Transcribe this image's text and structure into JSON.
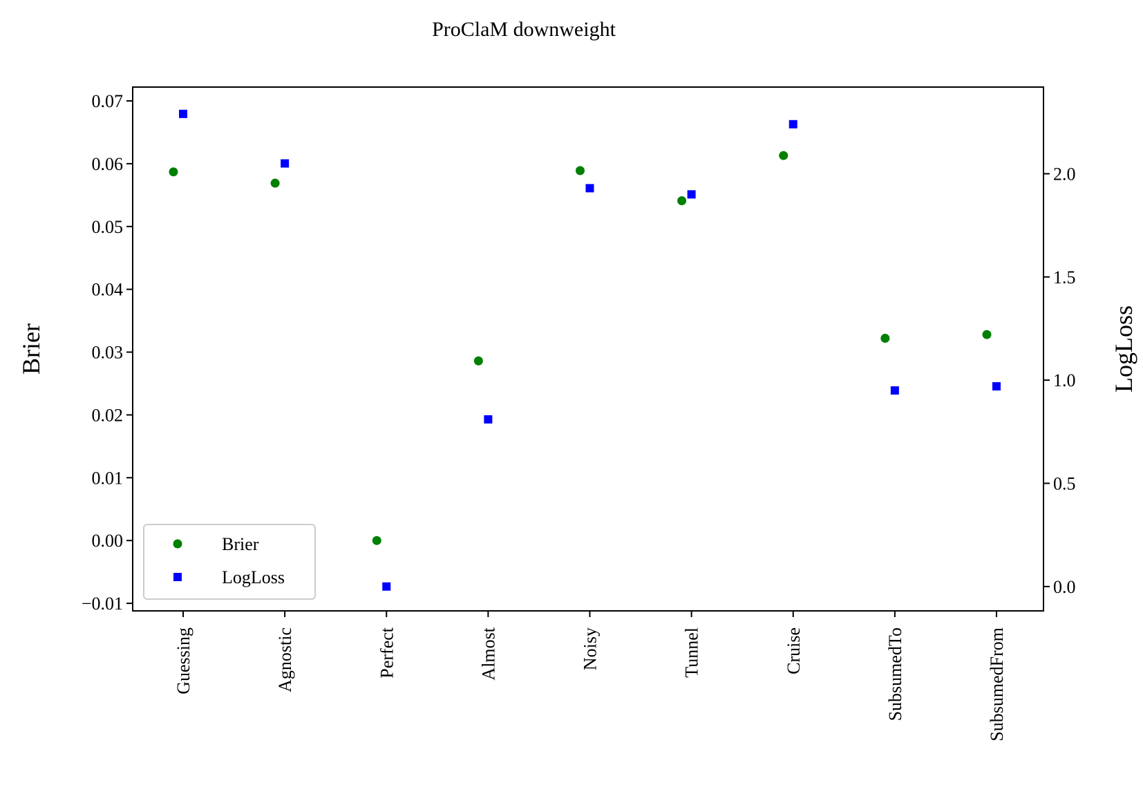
{
  "chart_data": {
    "type": "scatter",
    "title": "ProClaM downweight",
    "categories": [
      "Guessing",
      "Agnostic",
      "Perfect",
      "Almost",
      "Noisy",
      "Tunnel",
      "Cruise",
      "SubsumedTo",
      "SubsumedFrom"
    ],
    "series": [
      {
        "name": "Brier",
        "axis": "left",
        "marker": "circle",
        "color": "#008000",
        "values": [
          0.0587,
          0.0569,
          0.0,
          0.0286,
          0.0589,
          0.0541,
          0.0613,
          0.0322,
          0.0328
        ]
      },
      {
        "name": "LogLoss",
        "axis": "right",
        "marker": "square",
        "color": "#0000ff",
        "values": [
          2.29,
          2.05,
          0.0,
          0.81,
          1.93,
          1.9,
          2.24,
          0.95,
          0.97
        ]
      }
    ],
    "ylabel_left": "Brier",
    "ylabel_right": "LogLoss",
    "ylim_left": [
      -0.0112,
      0.0722
    ],
    "ylim_right": [
      -0.118,
      2.42
    ],
    "yticks_left": [
      -0.01,
      0.0,
      0.01,
      0.02,
      0.03,
      0.04,
      0.05,
      0.06,
      0.07
    ],
    "yticks_left_labels": [
      "−0.01",
      "0.00",
      "0.01",
      "0.02",
      "0.03",
      "0.04",
      "0.05",
      "0.06",
      "0.07"
    ],
    "yticks_right": [
      0.0,
      0.5,
      1.0,
      1.5,
      2.0
    ],
    "yticks_right_labels": [
      "0.0",
      "0.5",
      "1.0",
      "1.5",
      "2.0"
    ],
    "grid": false,
    "legend": {
      "position": "lower-left"
    }
  }
}
